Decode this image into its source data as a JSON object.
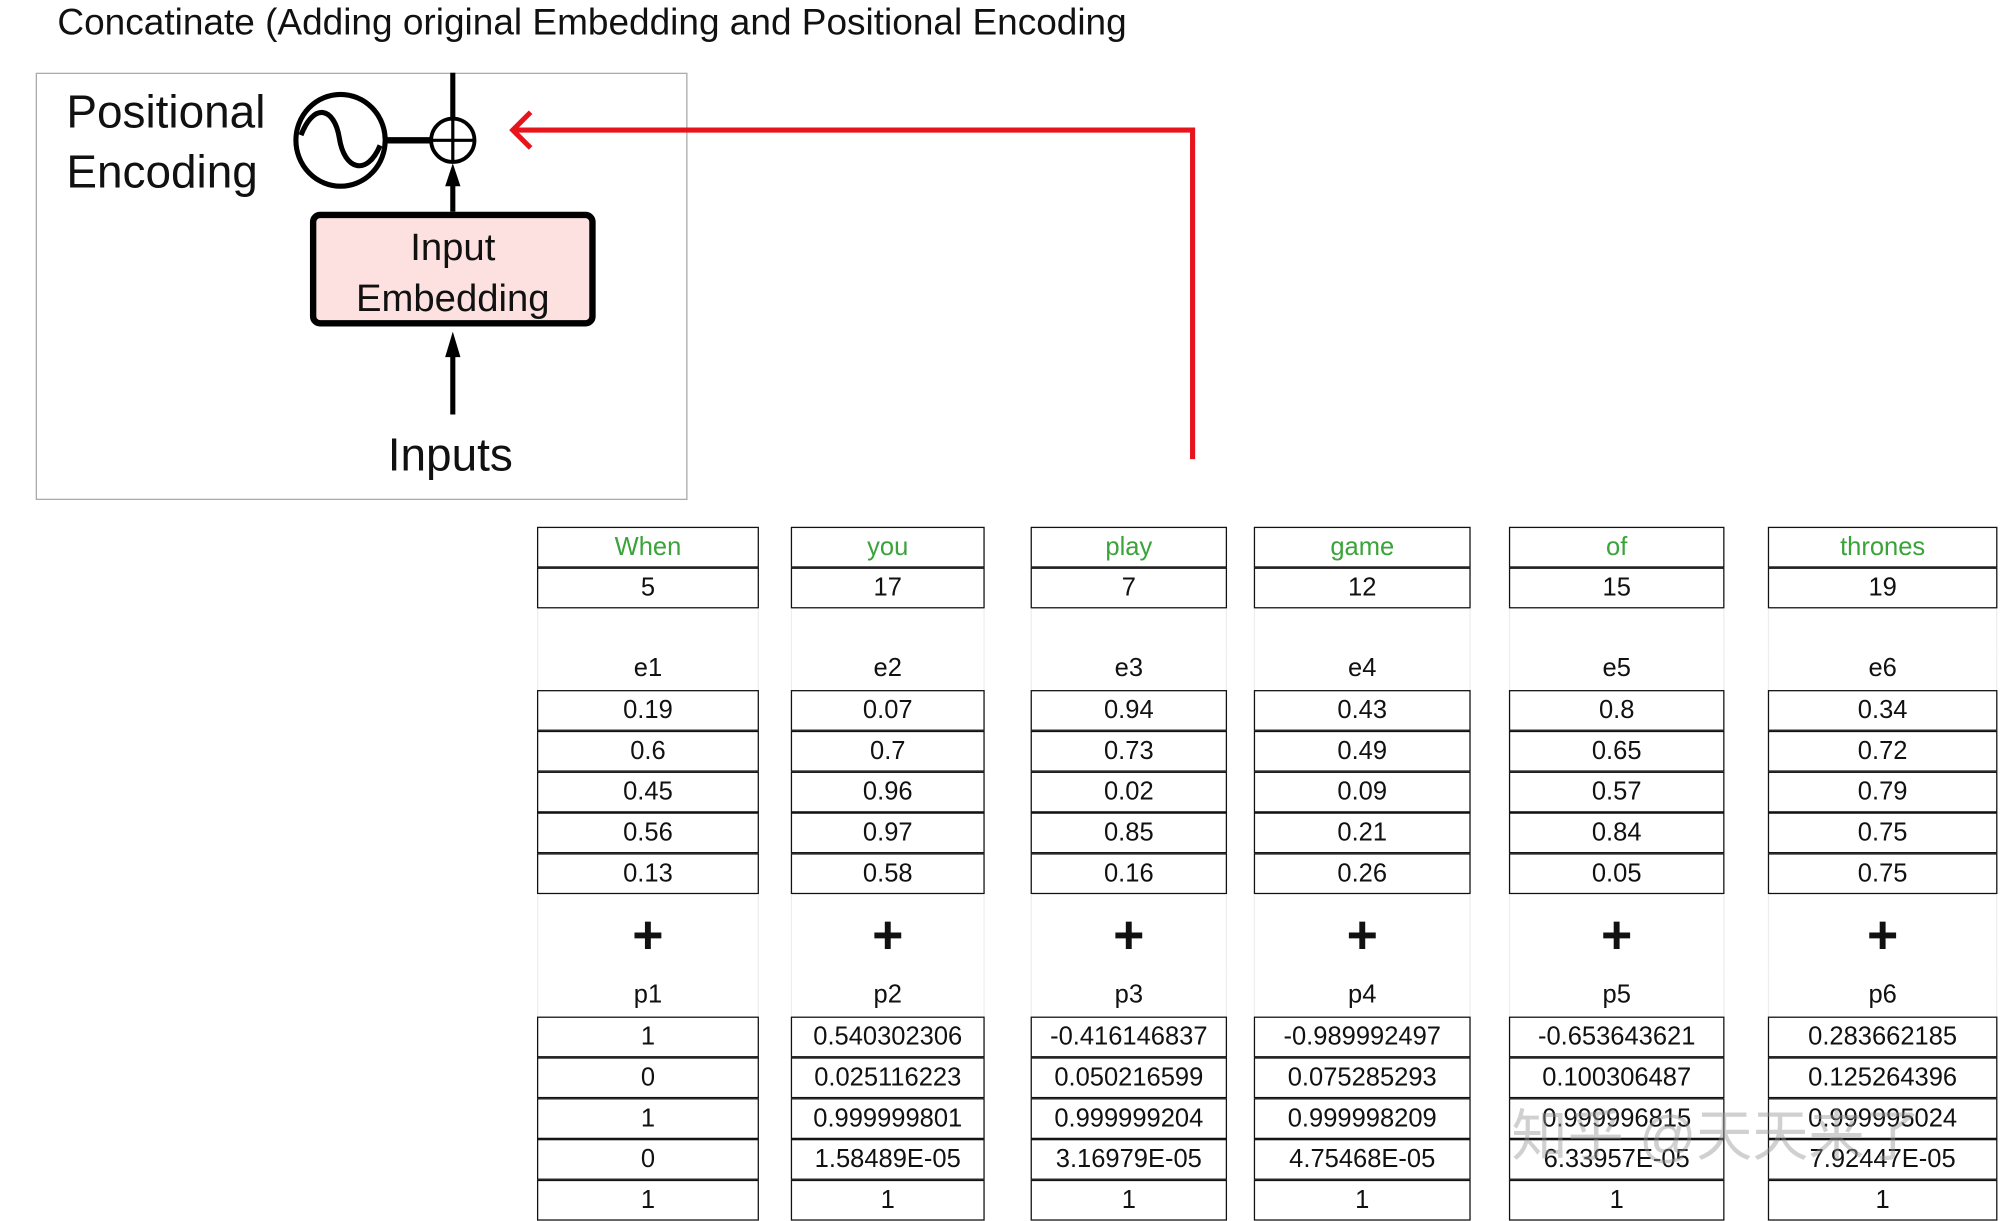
{
  "title": "Concatinate (Adding original Embedding and Positional Encoding",
  "diagram": {
    "positional_encoding_line1": "Positional",
    "positional_encoding_line2": "Encoding",
    "input_embedding_line1": "Input",
    "input_embedding_line2": "Embedding",
    "inputs": "Inputs",
    "arrow_color": "#e8141b",
    "embedding_fill": "#fde0e0"
  },
  "table": {
    "words": [
      "When",
      "you",
      "play",
      "game",
      "of",
      "thrones"
    ],
    "word_color": "#3aa33a",
    "ids": [
      "5",
      "17",
      "7",
      "12",
      "15",
      "19"
    ],
    "e_labels": [
      "e1",
      "e2",
      "e3",
      "e4",
      "e5",
      "e6"
    ],
    "embeddings": [
      [
        "0.19",
        "0.6",
        "0.45",
        "0.56",
        "0.13"
      ],
      [
        "0.07",
        "0.7",
        "0.96",
        "0.97",
        "0.58"
      ],
      [
        "0.94",
        "0.73",
        "0.02",
        "0.85",
        "0.16"
      ],
      [
        "0.43",
        "0.49",
        "0.09",
        "0.21",
        "0.26"
      ],
      [
        "0.8",
        "0.65",
        "0.57",
        "0.84",
        "0.05"
      ],
      [
        "0.34",
        "0.72",
        "0.79",
        "0.75",
        "0.75"
      ]
    ],
    "plus": "+",
    "p_labels": [
      "p1",
      "p2",
      "p3",
      "p4",
      "p5",
      "p6"
    ],
    "positional": [
      [
        "1",
        "0",
        "1",
        "0",
        "1"
      ],
      [
        "0.540302306",
        "0.025116223",
        "0.999999801",
        "1.58489E-05",
        "1"
      ],
      [
        "-0.416146837",
        "0.050216599",
        "0.999999204",
        "3.16979E-05",
        "1"
      ],
      [
        "-0.989992497",
        "0.075285293",
        "0.999998209",
        "4.75468E-05",
        "1"
      ],
      [
        "-0.653643621",
        "0.100306487",
        "0.999996815",
        "6.33957E-05",
        "1"
      ],
      [
        "0.283662185",
        "0.125264396",
        "0.999995024",
        "7.92447E-05",
        "1"
      ]
    ]
  },
  "watermark": "知乎 @天天来了"
}
